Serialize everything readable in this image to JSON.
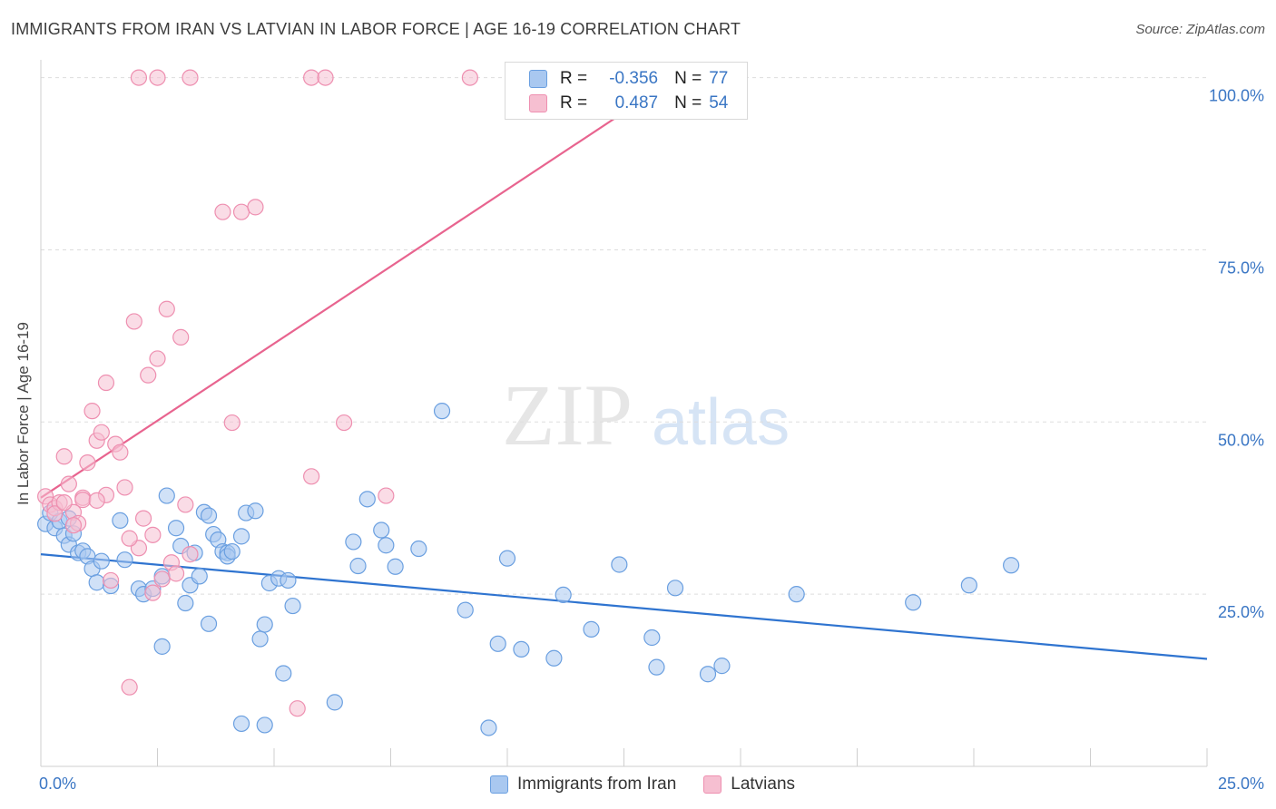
{
  "title": "IMMIGRANTS FROM IRAN VS LATVIAN IN LABOR FORCE | AGE 16-19 CORRELATION CHART",
  "source": "Source: ZipAtlas.com",
  "watermark": {
    "zip": "ZIP",
    "atlas": "atlas"
  },
  "colors": {
    "blue_fill": "#a9c8f0",
    "blue_stroke": "#6a9fe0",
    "blue_line": "#2f74d0",
    "pink_fill": "#f6bfd1",
    "pink_stroke": "#ee8fb0",
    "pink_line": "#e8648f",
    "tick_color": "#3a76c4",
    "grid": "#dddddd"
  },
  "stats": [
    {
      "r_label": "R =",
      "r_value": "-0.356",
      "n_label": "N =",
      "n_value": "77"
    },
    {
      "r_label": "R =",
      "r_value": "0.487",
      "n_label": "N =",
      "n_value": "54"
    }
  ],
  "legend": [
    "Immigrants from Iran",
    "Latvians"
  ],
  "chart_data": {
    "type": "scatter",
    "title": "IMMIGRANTS FROM IRAN VS LATVIAN IN LABOR FORCE | AGE 16-19 CORRELATION CHART",
    "xlabel": "",
    "ylabel": "In Labor Force | Age 16-19",
    "xlim": [
      0,
      25
    ],
    "ylim": [
      0,
      101
    ],
    "x_tick_labels": [
      "0.0%",
      "25.0%"
    ],
    "y_ticks": [
      25,
      50,
      75,
      100
    ],
    "y_tick_labels": [
      "25.0%",
      "50.0%",
      "75.0%",
      "100.0%"
    ],
    "grid": true,
    "legend_position": "bottom-center",
    "series": [
      {
        "name": "Immigrants from Iran",
        "color": "#a9c8f0",
        "trend": {
          "x": [
            0,
            25
          ],
          "y": [
            30.8,
            15.6
          ]
        },
        "points": [
          [
            0.1,
            35.2
          ],
          [
            0.2,
            36.8
          ],
          [
            0.3,
            34.6
          ],
          [
            0.4,
            35.6
          ],
          [
            0.5,
            33.5
          ],
          [
            0.6,
            32.2
          ],
          [
            0.7,
            33.8
          ],
          [
            0.8,
            31.0
          ],
          [
            0.9,
            31.3
          ],
          [
            1.0,
            30.5
          ],
          [
            1.1,
            28.7
          ],
          [
            1.2,
            26.7
          ],
          [
            1.3,
            29.8
          ],
          [
            1.5,
            26.2
          ],
          [
            1.7,
            35.7
          ],
          [
            2.1,
            25.8
          ],
          [
            2.2,
            25.0
          ],
          [
            2.4,
            25.8
          ],
          [
            2.6,
            27.6
          ],
          [
            2.6,
            17.4
          ],
          [
            2.7,
            39.3
          ],
          [
            2.9,
            34.6
          ],
          [
            3.0,
            32.0
          ],
          [
            3.1,
            23.7
          ],
          [
            3.2,
            26.3
          ],
          [
            3.3,
            31.0
          ],
          [
            3.5,
            36.9
          ],
          [
            3.6,
            36.4
          ],
          [
            3.6,
            20.7
          ],
          [
            3.7,
            33.7
          ],
          [
            3.8,
            32.9
          ],
          [
            3.9,
            31.2
          ],
          [
            4.0,
            31.0
          ],
          [
            4.0,
            30.5
          ],
          [
            4.1,
            31.2
          ],
          [
            4.3,
            33.4
          ],
          [
            4.3,
            6.2
          ],
          [
            4.4,
            36.8
          ],
          [
            4.6,
            37.1
          ],
          [
            4.7,
            18.5
          ],
          [
            4.8,
            20.6
          ],
          [
            4.8,
            6.0
          ],
          [
            4.9,
            26.6
          ],
          [
            5.1,
            27.3
          ],
          [
            5.2,
            13.5
          ],
          [
            5.3,
            27.0
          ],
          [
            5.4,
            23.3
          ],
          [
            6.3,
            9.3
          ],
          [
            6.7,
            32.6
          ],
          [
            6.8,
            29.1
          ],
          [
            7.0,
            38.8
          ],
          [
            7.3,
            34.3
          ],
          [
            7.4,
            32.1
          ],
          [
            7.6,
            29.0
          ],
          [
            8.1,
            31.6
          ],
          [
            8.6,
            51.6
          ],
          [
            9.1,
            22.7
          ],
          [
            9.6,
            5.6
          ],
          [
            9.8,
            17.8
          ],
          [
            10.0,
            30.2
          ],
          [
            10.3,
            17.0
          ],
          [
            11.0,
            15.7
          ],
          [
            11.2,
            24.9
          ],
          [
            11.8,
            19.9
          ],
          [
            12.4,
            29.3
          ],
          [
            13.1,
            18.7
          ],
          [
            13.2,
            14.4
          ],
          [
            13.6,
            25.9
          ],
          [
            14.3,
            13.4
          ],
          [
            14.6,
            14.6
          ],
          [
            16.2,
            25.0
          ],
          [
            18.7,
            23.8
          ],
          [
            19.9,
            26.3
          ],
          [
            20.8,
            29.2
          ],
          [
            0.6,
            36.0
          ],
          [
            1.8,
            30.0
          ],
          [
            3.4,
            27.6
          ]
        ]
      },
      {
        "name": "Latvians",
        "color": "#f6bfd1",
        "trend": {
          "x": [
            0,
            13.4
          ],
          "y": [
            39.0,
            99.0
          ]
        },
        "points": [
          [
            0.1,
            39.2
          ],
          [
            0.2,
            38.0
          ],
          [
            0.3,
            37.5
          ],
          [
            0.4,
            38.3
          ],
          [
            0.5,
            45.0
          ],
          [
            0.6,
            41.0
          ],
          [
            0.7,
            36.9
          ],
          [
            0.8,
            35.3
          ],
          [
            0.9,
            39.0
          ],
          [
            1.0,
            44.1
          ],
          [
            1.1,
            51.6
          ],
          [
            1.2,
            47.3
          ],
          [
            1.3,
            48.5
          ],
          [
            1.4,
            39.4
          ],
          [
            1.5,
            27.0
          ],
          [
            1.6,
            46.8
          ],
          [
            1.7,
            45.6
          ],
          [
            1.8,
            40.5
          ],
          [
            1.9,
            11.5
          ],
          [
            2.0,
            64.6
          ],
          [
            2.1,
            31.7
          ],
          [
            2.2,
            36.0
          ],
          [
            2.3,
            56.8
          ],
          [
            2.4,
            33.6
          ],
          [
            2.5,
            59.2
          ],
          [
            2.6,
            27.2
          ],
          [
            2.7,
            66.4
          ],
          [
            2.8,
            29.6
          ],
          [
            2.9,
            28.0
          ],
          [
            3.0,
            62.3
          ],
          [
            3.1,
            38.0
          ],
          [
            3.2,
            30.8
          ],
          [
            3.9,
            80.5
          ],
          [
            4.1,
            49.9
          ],
          [
            4.3,
            80.5
          ],
          [
            4.6,
            81.2
          ],
          [
            5.5,
            8.4
          ],
          [
            5.8,
            42.1
          ],
          [
            6.5,
            49.9
          ],
          [
            7.4,
            39.3
          ],
          [
            2.1,
            100.0
          ],
          [
            2.5,
            100.0
          ],
          [
            3.2,
            100.0
          ],
          [
            5.8,
            100.0
          ],
          [
            6.1,
            100.0
          ],
          [
            9.2,
            100.0
          ],
          [
            1.4,
            55.7
          ],
          [
            0.3,
            36.7
          ],
          [
            0.9,
            38.7
          ],
          [
            1.2,
            38.6
          ],
          [
            1.9,
            33.1
          ],
          [
            2.4,
            25.2
          ],
          [
            0.5,
            38.3
          ],
          [
            0.7,
            35.0
          ]
        ]
      }
    ]
  }
}
